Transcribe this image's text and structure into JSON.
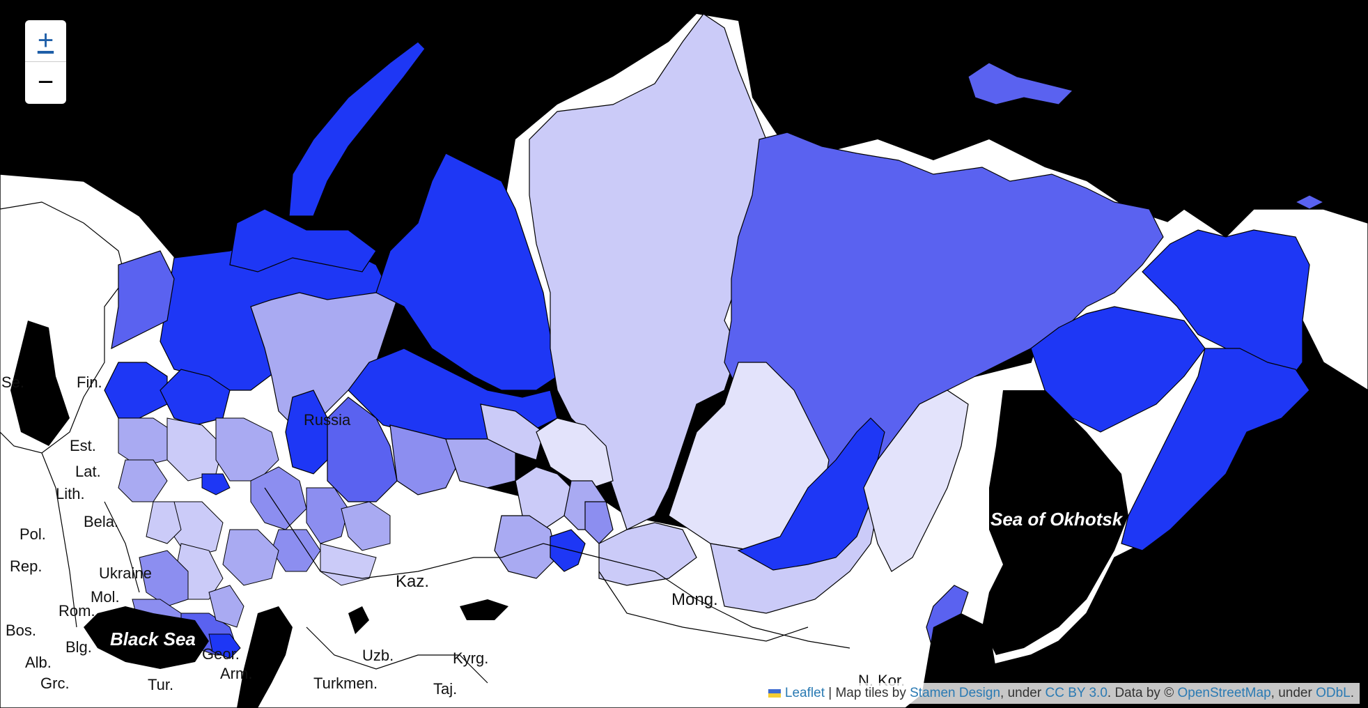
{
  "map": {
    "colors": {
      "water": "#000000",
      "land": "#ffffff",
      "very_light": "#e3e3fb",
      "light": "#cbcbf8",
      "medium_light": "#a9aaf2",
      "medium": "#8c8ef0",
      "strong": "#5a62f0",
      "darkest": "#1e37f5"
    },
    "country_labels": {
      "fin": "Fin.",
      "est": "Est.",
      "lat": "Lat.",
      "lith": "Lith.",
      "bela": "Bela.",
      "pol": "Pol.",
      "rep": "Rep.",
      "ukraine": "Ukraine",
      "mol": "Mol.",
      "rom": "Rom.",
      "bos": "Bos.",
      "blg": "Blg.",
      "alb": "Alb.",
      "grc": "Grc.",
      "tur": "Tur.",
      "geor": "Geor.",
      "arm": "Arm.",
      "kaz": "Kaz.",
      "uzb": "Uzb.",
      "kyrg": "Kyrg.",
      "turkmen": "Turkmen.",
      "taj": "Taj.",
      "mong": "Mong.",
      "nkor": "N. Kor.",
      "russia": "Russia",
      "se": "Se."
    },
    "sea_labels": {
      "black_sea": "Black Sea",
      "okhotsk": "Sea of Okhotsk"
    }
  },
  "zoom": {
    "in": "+",
    "out": "−"
  },
  "attribution": {
    "leaflet": "Leaflet",
    "t1": " | Map tiles by ",
    "stamen": "Stamen Design",
    "t2": ", under ",
    "cc": "CC BY 3.0",
    "t3": ". Data by © ",
    "osm": "OpenStreetMap",
    "t4": ", under ",
    "odbl": "ODbL",
    "t5": "."
  }
}
